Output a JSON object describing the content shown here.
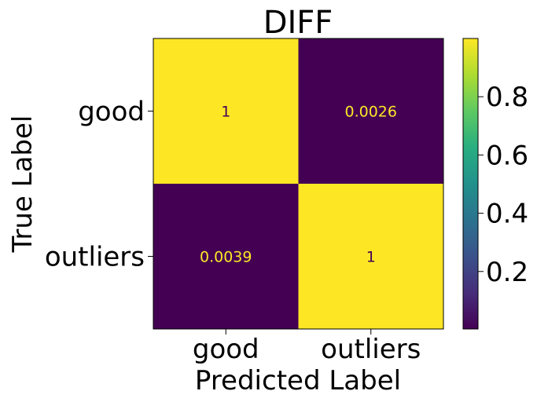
{
  "chart_data": {
    "type": "heatmap",
    "title": "DIFF",
    "xlabel": "Predicted Label",
    "ylabel": "True Label",
    "x_categories": [
      "good",
      "outliers"
    ],
    "y_categories": [
      "good",
      "outliers"
    ],
    "values": [
      [
        1,
        0.0026
      ],
      [
        0.0039,
        1
      ]
    ],
    "cell_labels": [
      [
        "1",
        "0.0026"
      ],
      [
        "0.0039",
        "1"
      ]
    ],
    "colormap": "viridis",
    "colorbar": {
      "range": [
        0.0026,
        1
      ],
      "ticks": [
        0.2,
        0.4,
        0.6,
        0.8
      ],
      "tick_labels": [
        "0.2",
        "0.4",
        "0.6",
        "0.8"
      ]
    },
    "colors": {
      "high": "#fde725",
      "low": "#440154",
      "label_on_dark": "#fde725",
      "label_on_light": "#440154"
    }
  }
}
